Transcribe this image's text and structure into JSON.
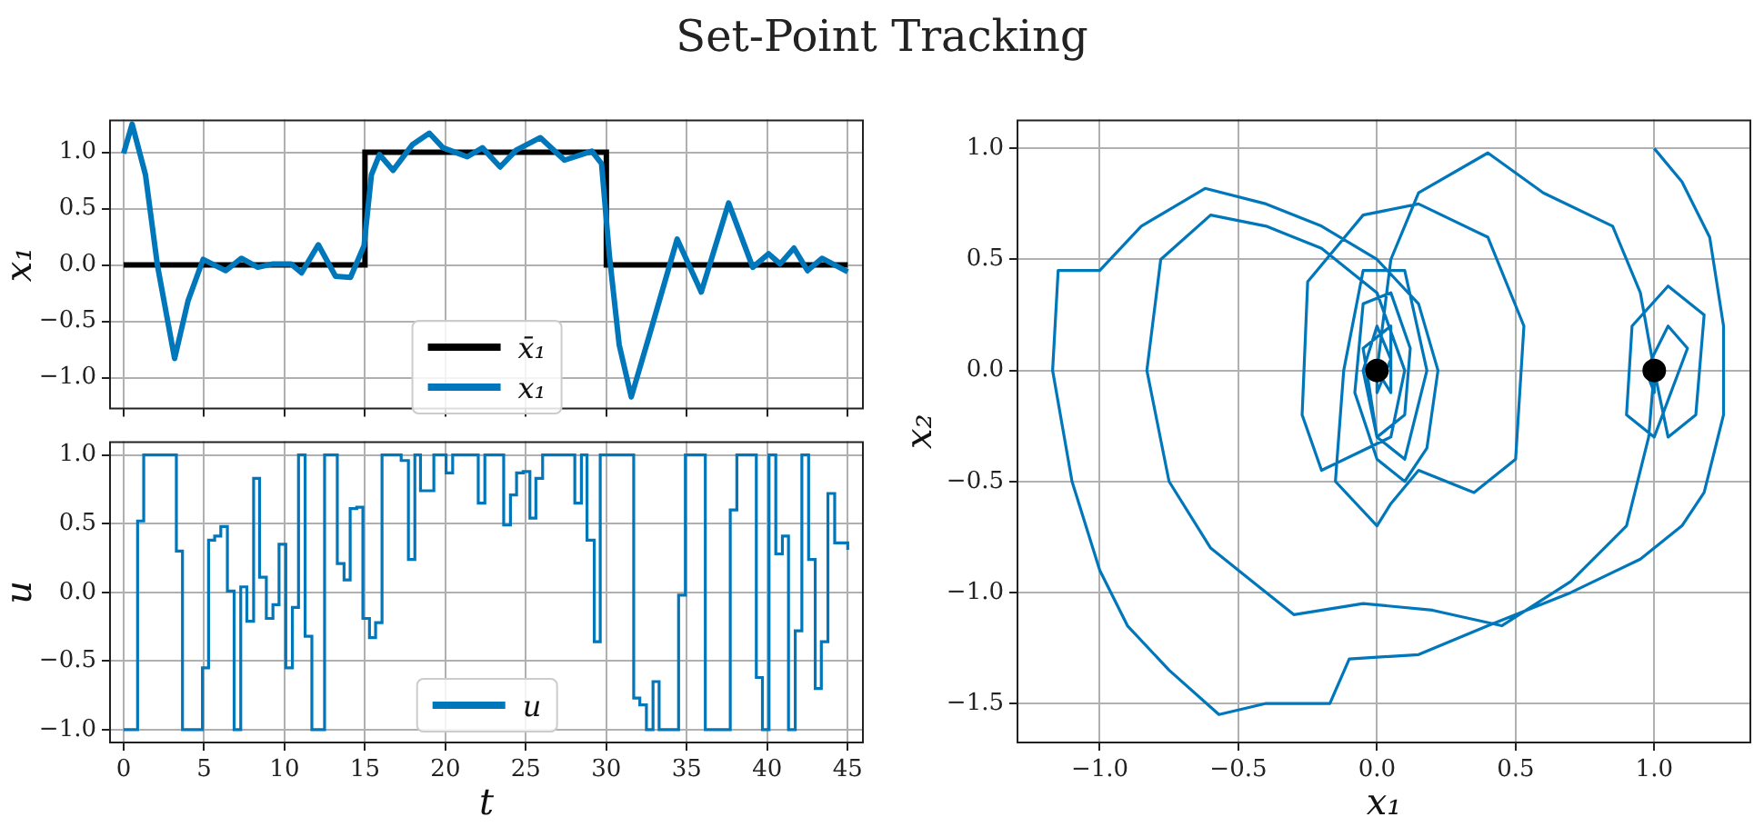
{
  "chart_data": [
    {
      "type": "line",
      "title": "Set-Point Tracking",
      "ylabel": "x₁",
      "xlim": [
        -0.9,
        46
      ],
      "ylim": [
        -1.28,
        1.29
      ],
      "xticks": [
        0,
        5,
        10,
        15,
        20,
        25,
        30,
        35,
        40,
        45
      ],
      "yticks": [
        {
          "value": -1,
          "label": "−1.0"
        },
        {
          "value": -0.5,
          "label": "−0.5"
        },
        {
          "value": 0,
          "label": "0.0"
        },
        {
          "value": 0.5,
          "label": "0.5"
        },
        {
          "value": 1,
          "label": "1.0"
        }
      ],
      "tick_labels": "y",
      "grid": true,
      "legend": "bottom",
      "series": [
        {
          "name": "x̄₁",
          "type": "step",
          "color": "#000000",
          "x": [
            0,
            15,
            30,
            45
          ],
          "values": [
            0,
            1,
            0,
            0
          ]
        },
        {
          "name": "x₁",
          "color": "#0077bb",
          "x": [
            0,
            0.53,
            1.36,
            2.1,
            3.17,
            4.0,
            4.94,
            6.34,
            7.32,
            8.34,
            9.28,
            10.4,
            11.06,
            12.1,
            13.17,
            14.1,
            14.94,
            15.4,
            15.9,
            16.75,
            17.96,
            19.0,
            19.85,
            21.36,
            22.3,
            23.4,
            24.4,
            25.9,
            27.4,
            29.1,
            29.7,
            30.2,
            30.8,
            31.55,
            32.7,
            34.4,
            35.9,
            37.6,
            39.1,
            40.08,
            40.8,
            41.66,
            42.5,
            43.4,
            45
          ],
          "values": [
            0.99,
            1.25,
            0.8,
            0,
            -0.83,
            -0.32,
            0.05,
            -0.05,
            0.06,
            -0.02,
            0.01,
            0.01,
            -0.07,
            0.18,
            -0.1,
            -0.11,
            0.17,
            0.8,
            0.98,
            0.84,
            1.07,
            1.17,
            1.04,
            0.96,
            1.04,
            0.87,
            1.02,
            1.13,
            0.93,
            1.01,
            0.9,
            0.07,
            -0.71,
            -1.17,
            -0.61,
            0.23,
            -0.24,
            0.55,
            -0.02,
            0.1,
            0.01,
            0.15,
            -0.05,
            0.06,
            -0.06
          ]
        }
      ]
    },
    {
      "type": "step",
      "xlabel": "t",
      "ylabel": "u",
      "xlim": [
        -0.9,
        46
      ],
      "ylim": [
        -1.1,
        1.1
      ],
      "xticks": [
        0,
        5,
        10,
        15,
        20,
        25,
        30,
        35,
        40,
        45
      ],
      "yticks": [
        {
          "value": -1,
          "label": "−1.0"
        },
        {
          "value": -0.5,
          "label": "−0.5"
        },
        {
          "value": 0,
          "label": "0.0"
        },
        {
          "value": 0.5,
          "label": "0.5"
        },
        {
          "value": 1,
          "label": "1.0"
        }
      ],
      "grid": true,
      "legend": "bottom",
      "series": [
        {
          "name": "u",
          "color": "#0077bb",
          "x": [
            0,
            0.87,
            1.25,
            3.28,
            3.66,
            4.9,
            5.28,
            5.66,
            6.04,
            6.45,
            6.87,
            7.28,
            7.66,
            8.08,
            8.45,
            8.87,
            9.28,
            9.66,
            10.08,
            10.49,
            10.87,
            11.28,
            11.7,
            12.49,
            13.28,
            13.7,
            14.08,
            14.49,
            14.87,
            15.28,
            15.66,
            16.06,
            17.25,
            17.7,
            18.1,
            18.45,
            19.28,
            20.04,
            20.45,
            22.04,
            22.45,
            23.62,
            24.04,
            24.42,
            24.83,
            25.25,
            25.62,
            26.04,
            28.04,
            28.45,
            28.8,
            29.25,
            29.62,
            31.7,
            32.08,
            32.49,
            32.9,
            33.28,
            34.49,
            34.91,
            36.15,
            37.7,
            38.11,
            39.32,
            39.7,
            40.11,
            40.53,
            40.94,
            41.32,
            41.74,
            42.15,
            42.57,
            42.98,
            43.36,
            43.77,
            44.19,
            45
          ],
          "values": [
            -1,
            0.52,
            1,
            0.3,
            -1,
            -0.55,
            0.38,
            0.41,
            0.48,
            0.01,
            -1,
            0.04,
            -0.21,
            0.83,
            0.11,
            -0.19,
            -0.09,
            0.35,
            -0.55,
            -0.11,
            1,
            -0.32,
            -1,
            1,
            0.21,
            0.09,
            0.61,
            0.62,
            -0.19,
            -0.33,
            -0.22,
            1,
            0.96,
            0.24,
            1,
            0.74,
            1,
            0.87,
            1,
            0.65,
            1,
            0.49,
            0.71,
            0.87,
            0.88,
            0.54,
            0.83,
            1,
            0.65,
            1,
            0.38,
            -0.36,
            1,
            -0.77,
            -0.82,
            -1,
            -0.65,
            -1,
            -0.02,
            1,
            -1,
            0.6,
            1,
            -0.62,
            -1,
            1,
            0.28,
            0.41,
            -1,
            -0.28,
            1,
            0.24,
            -0.7,
            -0.36,
            0.72,
            0.36,
            0.31
          ]
        }
      ]
    },
    {
      "type": "line",
      "xlabel": "x₁",
      "ylabel": "x₂",
      "xlim": [
        -1.3,
        1.35
      ],
      "ylim": [
        -1.68,
        1.13
      ],
      "xticks": [
        {
          "value": -1,
          "label": "−1.0"
        },
        {
          "value": -0.5,
          "label": "−0.5"
        },
        {
          "value": 0,
          "label": "0.0"
        },
        {
          "value": 0.5,
          "label": "0.5"
        },
        {
          "value": 1,
          "label": "1.0"
        }
      ],
      "yticks": [
        {
          "value": -1.5,
          "label": "−1.5"
        },
        {
          "value": -1,
          "label": "−1.0"
        },
        {
          "value": -0.5,
          "label": "−0.5"
        },
        {
          "value": 0,
          "label": "0.0"
        },
        {
          "value": 0.5,
          "label": "0.5"
        },
        {
          "value": 1,
          "label": "1.0"
        }
      ],
      "grid": true,
      "series": [
        {
          "color": "#0077bb",
          "x": [
            1.0,
            1.1,
            1.2,
            1.25,
            1.25,
            1.18,
            1.1,
            0.95,
            0.7,
            0.4,
            0.15,
            -0.1,
            -0.17,
            -0.4,
            -0.57,
            -0.75,
            -0.9,
            -1.0,
            -1.1,
            -1.17,
            -1.15,
            -1.0,
            -0.85,
            -0.62,
            -0.4,
            -0.2,
            0.0,
            0.15,
            0.22,
            0.18,
            0.1,
            0.0,
            -0.08,
            -0.05,
            0.05,
            0.12,
            0.1,
            0.0,
            -0.05,
            0.0,
            0.05,
            0.0,
            0.0,
            0.05,
            0.15,
            0.4,
            0.6,
            0.85,
            0.95,
            1.0,
            1.05,
            1.15,
            1.18,
            1.05,
            0.92,
            0.9,
            1.0,
            1.12,
            1.05,
            0.97,
            1.0,
            1.0,
            0.98,
            0.9,
            0.7,
            0.45,
            0.2,
            -0.05,
            -0.3,
            -0.45,
            -0.6,
            -0.75,
            -0.83,
            -0.78,
            -0.6,
            -0.4,
            -0.2,
            0.0,
            0.1,
            0.05,
            -0.2,
            -0.27,
            -0.25,
            -0.05,
            0.15,
            0.4,
            0.53,
            0.5,
            0.35,
            0.15,
            0.05,
            0.0,
            -0.15,
            -0.12,
            -0.05,
            0.1,
            0.18,
            0.1,
            0.0,
            -0.05,
            0.05,
            0.05,
            0.0
          ],
          "values": [
            1.0,
            0.85,
            0.6,
            0.2,
            -0.2,
            -0.55,
            -0.7,
            -0.85,
            -1.0,
            -1.15,
            -1.28,
            -1.3,
            -1.5,
            -1.5,
            -1.55,
            -1.35,
            -1.15,
            -0.9,
            -0.5,
            0.0,
            0.45,
            0.45,
            0.65,
            0.82,
            0.75,
            0.65,
            0.5,
            0.3,
            0.0,
            -0.35,
            -0.5,
            -0.4,
            -0.1,
            0.3,
            0.35,
            0.1,
            -0.2,
            -0.3,
            0.0,
            0.2,
            0.05,
            -0.1,
            0.0,
            0.5,
            0.8,
            0.98,
            0.8,
            0.65,
            0.35,
            0.0,
            -0.3,
            -0.2,
            0.25,
            0.38,
            0.2,
            -0.2,
            -0.3,
            0.1,
            0.2,
            0.0,
            -0.1,
            0.0,
            -0.3,
            -0.7,
            -0.95,
            -1.15,
            -1.08,
            -1.05,
            -1.1,
            -0.95,
            -0.8,
            -0.5,
            0.0,
            0.5,
            0.7,
            0.65,
            0.55,
            0.35,
            0.0,
            -0.3,
            -0.45,
            -0.2,
            0.4,
            0.7,
            0.75,
            0.6,
            0.2,
            -0.4,
            -0.55,
            -0.45,
            -0.6,
            -0.7,
            -0.5,
            0.0,
            0.45,
            0.45,
            0.0,
            -0.4,
            -0.3,
            0.1,
            0.2,
            -0.1,
            0.0
          ]
        },
        {
          "type": "scatter",
          "marker": "circle",
          "color": "#000000",
          "x": [
            0,
            1
          ],
          "values": [
            0,
            0
          ]
        }
      ]
    }
  ]
}
